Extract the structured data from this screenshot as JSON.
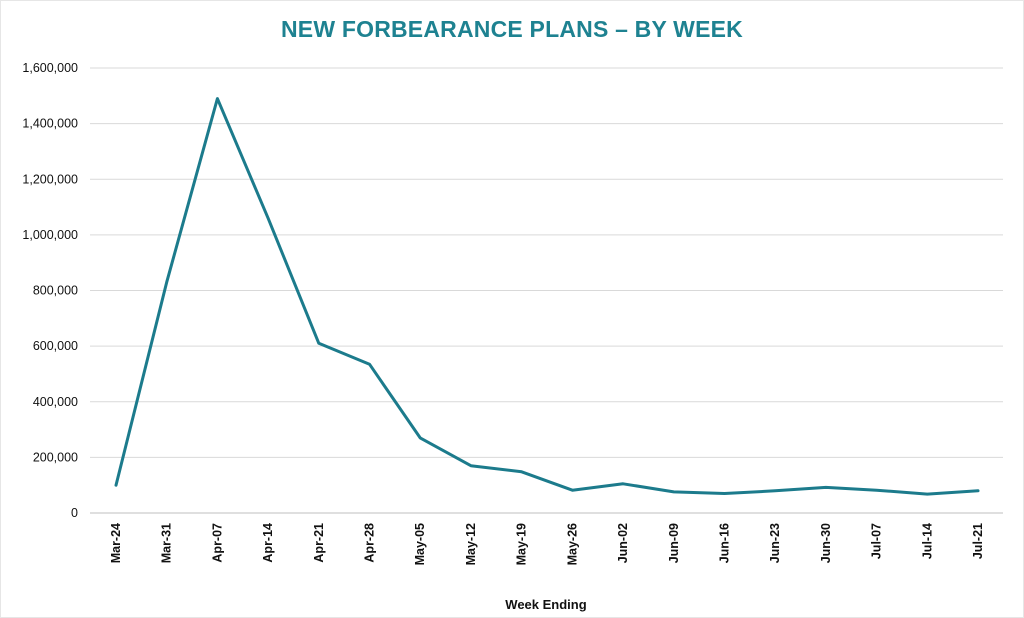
{
  "chart_data": {
    "type": "line",
    "title": "NEW FORBEARANCE PLANS – BY WEEK",
    "xlabel": "Week Ending",
    "ylabel": "",
    "ylim": [
      0,
      1600000
    ],
    "yticks": [
      0,
      200000,
      400000,
      600000,
      800000,
      1000000,
      1200000,
      1400000,
      1600000
    ],
    "ytick_labels": [
      "0",
      "200,000",
      "400,000",
      "600,000",
      "800,000",
      "1,000,000",
      "1,200,000",
      "1,400,000",
      "1,600,000"
    ],
    "categories": [
      "Mar-24",
      "Mar-31",
      "Apr-07",
      "Apr-14",
      "Apr-21",
      "Apr-28",
      "May-05",
      "May-12",
      "May-19",
      "May-26",
      "Jun-02",
      "Jun-09",
      "Jun-16",
      "Jun-23",
      "Jun-30",
      "Jul-07",
      "Jul-14",
      "Jul-21"
    ],
    "series": [
      {
        "values": [
          100000,
          830000,
          1490000,
          1060000,
          610000,
          535000,
          270000,
          170000,
          148000,
          82000,
          105000,
          76000,
          70000,
          80000,
          92000,
          82000,
          68000,
          80000
        ]
      }
    ],
    "grid": true,
    "line_color": "#1c7b8c",
    "grid_color": "#d9d9d9"
  }
}
